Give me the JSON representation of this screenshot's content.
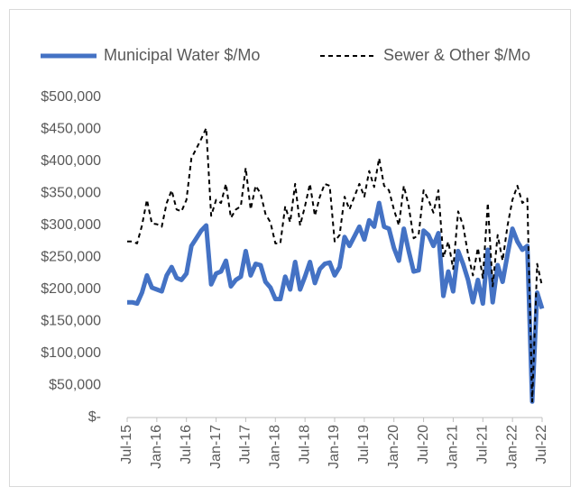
{
  "chart_data": {
    "type": "line",
    "categories": [
      "Jul-15",
      null,
      null,
      null,
      null,
      null,
      "Jan-16",
      null,
      null,
      null,
      null,
      null,
      "Jul-16",
      null,
      null,
      null,
      null,
      null,
      "Jan-17",
      null,
      null,
      null,
      null,
      null,
      "Jul-17",
      null,
      null,
      null,
      null,
      null,
      "Jan-18",
      null,
      null,
      null,
      null,
      null,
      "Jul-18",
      null,
      null,
      null,
      null,
      null,
      "Jan-19",
      null,
      null,
      null,
      null,
      null,
      "Jul-19",
      null,
      null,
      null,
      null,
      null,
      "Jan-20",
      null,
      null,
      null,
      null,
      null,
      "Jul-20",
      null,
      null,
      null,
      null,
      null,
      "Jan-21",
      null,
      null,
      null,
      null,
      null,
      "Jul-21",
      null,
      null,
      null,
      null,
      null,
      "Jan-22",
      null,
      null,
      null,
      null,
      null,
      "Jul-22"
    ],
    "series": [
      {
        "name": "Municipal Water $/Mo",
        "color": "#4472c4",
        "style": "solid",
        "values": [
          180000,
          180000,
          178000,
          195000,
          222000,
          203000,
          200000,
          197000,
          222000,
          235000,
          218000,
          215000,
          225000,
          268000,
          280000,
          292000,
          300000,
          208000,
          225000,
          228000,
          245000,
          205000,
          215000,
          220000,
          260000,
          222000,
          240000,
          238000,
          212000,
          203000,
          185000,
          185000,
          220000,
          200000,
          243000,
          200000,
          220000,
          243000,
          210000,
          232000,
          240000,
          242000,
          222000,
          235000,
          282000,
          268000,
          283000,
          298000,
          278000,
          308000,
          298000,
          335000,
          298000,
          295000,
          265000,
          245000,
          295000,
          260000,
          228000,
          230000,
          292000,
          285000,
          268000,
          288000,
          190000,
          228000,
          197000,
          260000,
          240000,
          215000,
          180000,
          215000,
          178000,
          262000,
          180000,
          238000,
          212000,
          255000,
          295000,
          275000,
          262000,
          268000,
          25000,
          195000,
          170000
        ]
      },
      {
        "name": "Sewer & Other $/Mo",
        "color": "#000000",
        "style": "dashed",
        "values": [
          275000,
          275000,
          272000,
          300000,
          340000,
          303000,
          302000,
          298000,
          335000,
          355000,
          325000,
          322000,
          340000,
          405000,
          420000,
          435000,
          452000,
          315000,
          340000,
          335000,
          365000,
          312000,
          325000,
          330000,
          390000,
          325000,
          362000,
          350000,
          318000,
          305000,
          272000,
          272000,
          330000,
          305000,
          365000,
          300000,
          330000,
          365000,
          315000,
          345000,
          365000,
          362000,
          275000,
          285000,
          345000,
          325000,
          345000,
          365000,
          345000,
          385000,
          360000,
          405000,
          362000,
          355000,
          325000,
          300000,
          362000,
          330000,
          280000,
          285000,
          355000,
          340000,
          320000,
          355000,
          250000,
          275000,
          232000,
          322000,
          300000,
          255000,
          222000,
          265000,
          218000,
          335000,
          205000,
          285000,
          245000,
          300000,
          340000,
          362000,
          335000,
          342000,
          25000,
          240000,
          205000
        ]
      }
    ],
    "ylim": [
      0,
      500000
    ],
    "yticks": [
      {
        "value": 0,
        "label": "$-"
      },
      {
        "value": 50000,
        "label": "$50,000"
      },
      {
        "value": 100000,
        "label": "$100,000"
      },
      {
        "value": 150000,
        "label": "$150,000"
      },
      {
        "value": 200000,
        "label": "$200,000"
      },
      {
        "value": 250000,
        "label": "$250,000"
      },
      {
        "value": 300000,
        "label": "$300,000"
      },
      {
        "value": 350000,
        "label": "$350,000"
      },
      {
        "value": 400000,
        "label": "$400,000"
      },
      {
        "value": 450000,
        "label": "$450,000"
      },
      {
        "value": 500000,
        "label": "$500,000"
      }
    ],
    "legend": "top",
    "grid": false
  }
}
